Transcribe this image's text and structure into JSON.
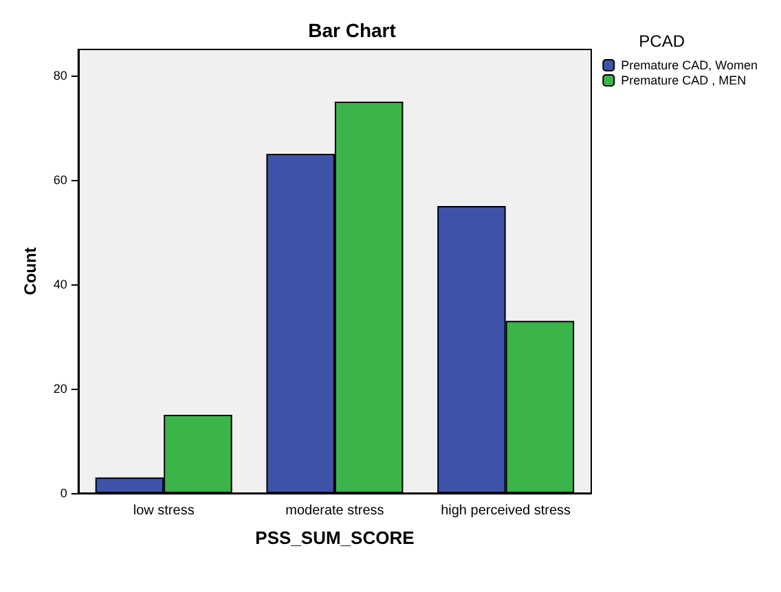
{
  "chart_data": {
    "type": "bar",
    "title": "Bar Chart",
    "xlabel": "PSS_SUM_SCORE",
    "ylabel": "Count",
    "legend_title": "PCAD",
    "categories": [
      "low stress",
      "moderate stress",
      "high perceived stress"
    ],
    "series": [
      {
        "name": "Premature CAD, Women",
        "color": "#3e53a8",
        "values": [
          3,
          65,
          55
        ]
      },
      {
        "name": "Premature CAD , MEN",
        "color": "#3bb54a",
        "values": [
          15,
          75,
          33
        ]
      }
    ],
    "ylim": [
      0,
      85
    ],
    "yticks": [
      0,
      20,
      40,
      60,
      80
    ],
    "grid": false,
    "legend": "top right"
  }
}
